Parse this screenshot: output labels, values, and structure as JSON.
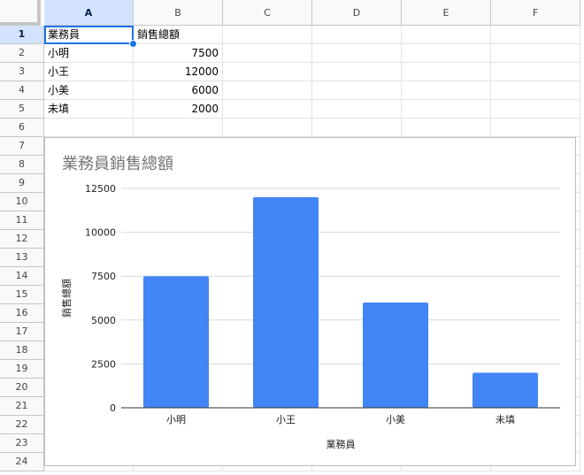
{
  "sheet": {
    "columns": [
      "A",
      "B",
      "C",
      "D",
      "E",
      "F"
    ],
    "rows": [
      "1",
      "2",
      "3",
      "4",
      "5",
      "6",
      "7",
      "8",
      "9",
      "10",
      "11",
      "12",
      "13",
      "14",
      "15",
      "16",
      "17",
      "18",
      "19",
      "20",
      "21",
      "22",
      "23",
      "24"
    ],
    "selected_cell": "A1",
    "cells": [
      [
        "業務員",
        "銷售總額"
      ],
      [
        "小明",
        "7500"
      ],
      [
        "小王",
        "12000"
      ],
      [
        "小美",
        "6000"
      ],
      [
        "未填",
        "2000"
      ]
    ]
  },
  "chart_data": {
    "type": "bar",
    "title": "業務員銷售總額",
    "xlabel": "業務員",
    "ylabel": "銷售總額",
    "categories": [
      "小明",
      "小王",
      "小美",
      "未填"
    ],
    "series": [
      {
        "name": "銷售總額",
        "values": [
          7500,
          12000,
          6000,
          2000
        ]
      }
    ],
    "ylim": [
      0,
      12500
    ],
    "yticks": [
      0,
      2500,
      5000,
      7500,
      10000,
      12500
    ],
    "grid": true,
    "colors": {
      "bar": "#4285f4",
      "title": "#757575",
      "grid": "#d9d9d9",
      "axis": "#333333"
    }
  }
}
